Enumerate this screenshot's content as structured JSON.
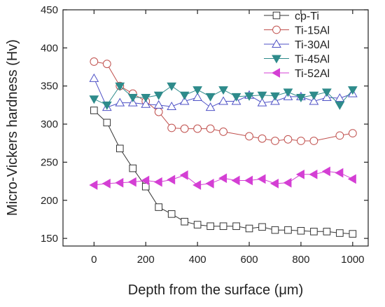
{
  "chart_data": {
    "type": "line",
    "title": "",
    "xlabel": "Depth from the surface (μm)",
    "ylabel": "Micro-Vickers hardness (Hv)",
    "xlim": [
      -120,
      1060
    ],
    "ylim": [
      140,
      450
    ],
    "xticks": [
      0,
      200,
      400,
      600,
      800,
      1000
    ],
    "yticks": [
      150,
      200,
      250,
      300,
      350,
      400,
      450
    ],
    "grid": false,
    "legend_position": "top-right",
    "series": [
      {
        "name": "cp-Ti",
        "color": "#333333",
        "marker": "square-open",
        "x": [
          0,
          50,
          100,
          150,
          200,
          250,
          300,
          350,
          400,
          450,
          500,
          550,
          600,
          650,
          700,
          750,
          800,
          850,
          900,
          950,
          1000
        ],
        "y": [
          318,
          302,
          268,
          242,
          218,
          191,
          182,
          172,
          168,
          166,
          166,
          166,
          163,
          165,
          161,
          161,
          160,
          159,
          159,
          157,
          156
        ]
      },
      {
        "name": "Ti-15Al",
        "color": "#c0504d",
        "marker": "circle-open",
        "x": [
          0,
          50,
          100,
          150,
          200,
          250,
          300,
          350,
          400,
          450,
          500,
          600,
          650,
          700,
          750,
          800,
          850,
          950,
          1000
        ],
        "y": [
          382,
          379,
          350,
          340,
          330,
          316,
          295,
          294,
          294,
          294,
          290,
          284,
          281,
          278,
          280,
          278,
          278,
          285,
          288
        ]
      },
      {
        "name": "Ti-30Al",
        "color": "#4f52c6",
        "marker": "triangle-up-open",
        "x": [
          0,
          50,
          100,
          150,
          200,
          250,
          300,
          350,
          400,
          450,
          500,
          550,
          600,
          650,
          700,
          750,
          800,
          850,
          900,
          950,
          1000
        ],
        "y": [
          360,
          322,
          328,
          328,
          326,
          325,
          323,
          330,
          335,
          322,
          330,
          330,
          338,
          328,
          330,
          336,
          336,
          330,
          335,
          334,
          340
        ]
      },
      {
        "name": "Ti-45Al",
        "color": "#2e8b8b",
        "marker": "triangle-down-filled",
        "x": [
          0,
          50,
          100,
          150,
          200,
          250,
          300,
          350,
          400,
          450,
          500,
          550,
          600,
          650,
          700,
          750,
          800,
          850,
          900,
          950,
          1000
        ],
        "y": [
          333,
          325,
          350,
          335,
          335,
          338,
          350,
          338,
          345,
          336,
          345,
          336,
          337,
          338,
          337,
          342,
          335,
          338,
          342,
          325,
          345
        ]
      },
      {
        "name": "Ti-52Al",
        "color": "#d43fd4",
        "marker": "triangle-left-filled",
        "x": [
          0,
          50,
          100,
          150,
          200,
          250,
          300,
          350,
          400,
          450,
          500,
          550,
          600,
          650,
          700,
          750,
          800,
          850,
          900,
          950,
          1000
        ],
        "y": [
          220,
          222,
          223,
          224,
          226,
          224,
          227,
          233,
          220,
          222,
          229,
          226,
          226,
          228,
          222,
          223,
          234,
          234,
          238,
          236,
          228
        ]
      }
    ]
  }
}
